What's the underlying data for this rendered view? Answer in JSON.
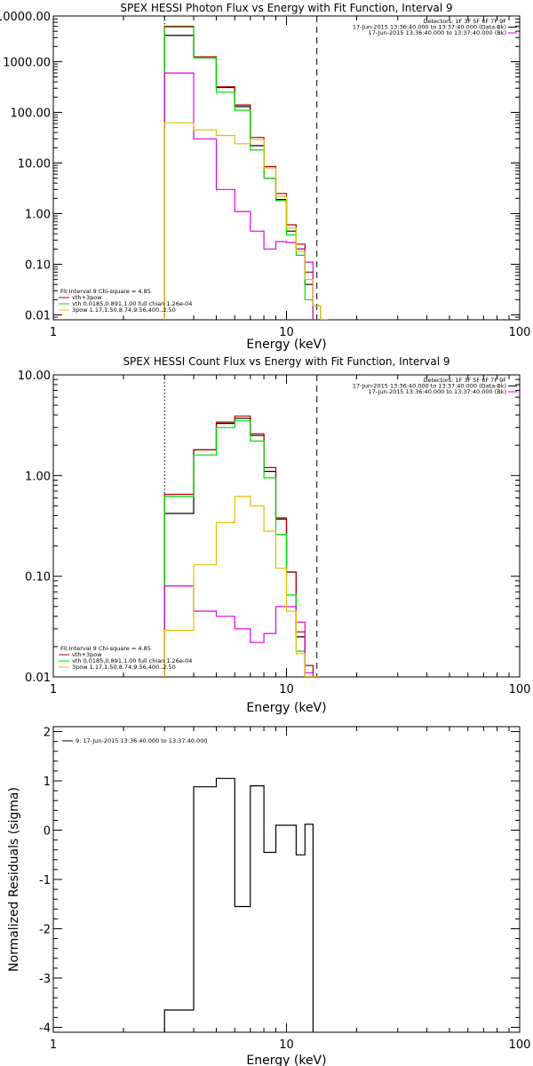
{
  "colors": {
    "black": "#000000",
    "red": "#b00000",
    "green": "#00dd00",
    "magenta": "#e000e0",
    "yellow": "#e0c000"
  },
  "chart_data": [
    {
      "type": "line",
      "title": "SPEX HESSI Photon Flux vs Energy with Fit Function, Interval 9",
      "xlabel": "Energy (keV)",
      "ylabel": "",
      "xscale": "log",
      "yscale": "log",
      "xlim": [
        1,
        100
      ],
      "ylim": [
        0.008,
        8000
      ],
      "x_ticks": [
        "1",
        "10",
        "100"
      ],
      "y_ticks": [
        "10000.00",
        "1000.00",
        "100.00",
        "10.00",
        "1.00",
        "0.10",
        "0.01"
      ],
      "y_tick_values": [
        10000,
        1000,
        100,
        10,
        1,
        0.1,
        0.01
      ],
      "x_edges": [
        3,
        4,
        5,
        6,
        7,
        8,
        9,
        10,
        11,
        12,
        13,
        14,
        15
      ],
      "legend_top": {
        "lines": [
          "Detectors: 1F 3F 5F 6F 7F 9F",
          "17-Jun-2015 13:36:40.000 to 13:37:40.000 (Data-Bk)",
          "17-Jun-2015 13:36:40.000 to 13:37:40.000 (Bk)"
        ],
        "line_colors": [
          "",
          "black",
          "magenta"
        ]
      },
      "legend_bottom": {
        "lines": [
          "Fit Interval 9   Chi-square = 4.85",
          "vth+3pow",
          "vth 0.0185,0.891,1.00  full chian 1.26e-04",
          "3pow 1.17,1.50,8.74,9.56,400.,2.50"
        ],
        "line_colors": [
          "",
          "red",
          "green",
          "yellow"
        ]
      },
      "vlines": [
        {
          "x": 3,
          "style": "dotted"
        },
        {
          "x": 13.5,
          "style": "dashed"
        }
      ],
      "series": [
        {
          "color": "black",
          "values": [
            3300,
            1200,
            310,
            130,
            22,
            5,
            1.9,
            0.45,
            0.2,
            0.04,
            0.015,
            null
          ]
        },
        {
          "color": "red",
          "values": [
            5000,
            1250,
            320,
            140,
            32,
            8.5,
            2.5,
            0.6,
            0.25,
            0.07,
            0.008,
            0.008
          ]
        },
        {
          "color": "green",
          "values": [
            4800,
            1200,
            250,
            110,
            18,
            5,
            1.8,
            0.38,
            0.15,
            0.02,
            0.008,
            0.008
          ]
        },
        {
          "color": "magenta",
          "values": [
            600,
            30,
            3,
            1.1,
            0.45,
            0.2,
            0.28,
            0.27,
            0.2,
            0.11,
            0.008,
            null
          ]
        },
        {
          "color": "yellow",
          "values": [
            62,
            45,
            35,
            24,
            29,
            8,
            2.2,
            0.52,
            0.18,
            0.05,
            0.015,
            0.008
          ]
        }
      ]
    },
    {
      "type": "line",
      "title": "SPEX HESSI Count Flux vs Energy with Fit Function, Interval 9",
      "xlabel": "Energy (keV)",
      "ylabel": "",
      "xscale": "log",
      "yscale": "log",
      "xlim": [
        1,
        100
      ],
      "ylim": [
        0.01,
        10
      ],
      "x_ticks": [
        "1",
        "10",
        "100"
      ],
      "y_ticks": [
        "10.00",
        "1.00",
        "0.10",
        "0.01"
      ],
      "y_tick_values": [
        10,
        1,
        0.1,
        0.01
      ],
      "x_edges": [
        3,
        4,
        5,
        6,
        7,
        8,
        9,
        10,
        11,
        12,
        13,
        14
      ],
      "legend_top": {
        "lines": [
          "Detectors: 1F 3F 5F 6F 7F 9F",
          "17-Jun-2015 13:36:40.000 to 13:37:40.000 (Data-Bk)",
          "17-Jun-2015 13:36:40.000 to 13:37:40.000 (Bk)"
        ],
        "line_colors": [
          "",
          "black",
          "magenta"
        ]
      },
      "legend_bottom": {
        "lines": [
          "Fit Interval 9   Chi-square = 4.85",
          "vth+3pow",
          "vth 0.0185,0.891,1.00  full chian 1.26e-04",
          "3pow 1.17,1.50,8.74,9.56,400.,2.50"
        ],
        "line_colors": [
          "",
          "red",
          "green",
          "yellow"
        ]
      },
      "vlines": [
        {
          "x": 3,
          "style": "dotted"
        },
        {
          "x": 13.5,
          "style": "dashed"
        }
      ],
      "series": [
        {
          "color": "black",
          "values": [
            0.42,
            1.8,
            3.3,
            3.7,
            2.5,
            1.1,
            0.37,
            0.11,
            0.025,
            0.008,
            0.008
          ]
        },
        {
          "color": "red",
          "values": [
            0.65,
            1.8,
            3.4,
            3.9,
            2.6,
            1.2,
            0.38,
            0.11,
            0.028,
            0.013,
            0.008
          ]
        },
        {
          "color": "green",
          "values": [
            0.62,
            1.6,
            3.0,
            3.5,
            2.2,
            0.95,
            0.26,
            0.065,
            0.018,
            0.008,
            0.008
          ]
        },
        {
          "color": "magenta",
          "values": [
            0.08,
            0.045,
            0.04,
            0.03,
            0.022,
            0.027,
            0.05,
            0.05,
            0.035,
            0.011,
            0.008
          ]
        },
        {
          "color": "yellow",
          "values": [
            0.029,
            0.13,
            0.34,
            0.62,
            0.5,
            0.28,
            0.12,
            0.045,
            0.017,
            0.008,
            0.008
          ]
        }
      ]
    },
    {
      "type": "line",
      "title": "",
      "xlabel": "Energy (keV)",
      "ylabel": "Normalized Residuals (sigma)",
      "xscale": "log",
      "yscale": "linear",
      "xlim": [
        1,
        100
      ],
      "ylim": [
        -4.1,
        2.1
      ],
      "x_ticks": [
        "1",
        "10",
        "100"
      ],
      "y_ticks": [
        "2",
        "1",
        "0",
        "-1",
        "-2",
        "-3",
        "-4"
      ],
      "y_tick_values": [
        2,
        1,
        0,
        -1,
        -2,
        -3,
        -4
      ],
      "x_edges": [
        3,
        4,
        5,
        6,
        7,
        8,
        9,
        10,
        11,
        12,
        13
      ],
      "legend_top": {
        "lines": [
          "9: 17-Jun-2015 13:36:40.000 to 13:37:40.000"
        ],
        "line_colors": [
          "black"
        ]
      },
      "series": [
        {
          "color": "black",
          "values": [
            -3.65,
            0.88,
            1.05,
            -1.55,
            0.9,
            -0.45,
            0.1,
            0.1,
            -0.5,
            0.12
          ]
        }
      ]
    }
  ]
}
